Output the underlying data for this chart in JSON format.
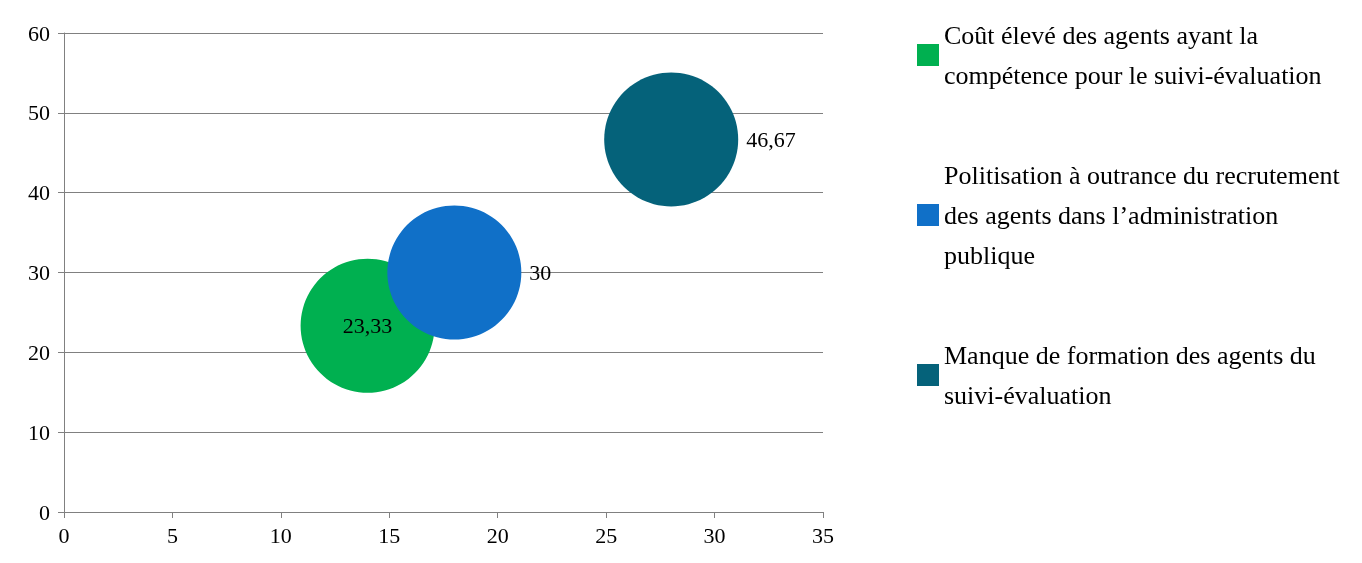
{
  "chart_data": {
    "type": "bubble",
    "xlim": [
      0,
      35
    ],
    "xticks": [
      0,
      5,
      10,
      15,
      20,
      25,
      30,
      35
    ],
    "ylim": [
      0,
      60
    ],
    "yticks": [
      0,
      10,
      20,
      30,
      40,
      50,
      60
    ],
    "grid": "y",
    "legend": "right",
    "series": [
      {
        "name": "Coût élevé des agents ayant la compétence pour le suivi-évaluation",
        "color": "#00b050",
        "x": [
          14
        ],
        "values": [
          23.33
        ],
        "sizes": [
          1
        ],
        "value_labels": [
          "23,33"
        ]
      },
      {
        "name": "Politisation à outrance du recrutement des agents dans l’administration publique",
        "color": "#1070c8",
        "x": [
          18
        ],
        "values": [
          30
        ],
        "sizes": [
          1
        ],
        "value_labels": [
          "30"
        ]
      },
      {
        "name": "Manque de formation des agents du suivi-évaluation",
        "color": "#05627a",
        "x": [
          28
        ],
        "values": [
          46.67
        ],
        "sizes": [
          1
        ],
        "value_labels": [
          "46,67"
        ]
      }
    ]
  }
}
